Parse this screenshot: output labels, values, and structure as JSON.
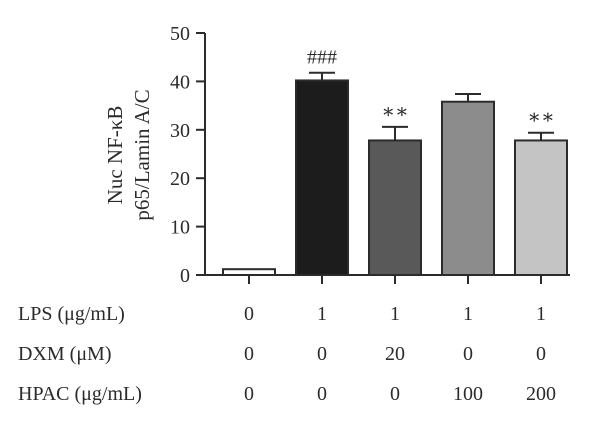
{
  "chart_data": {
    "type": "bar",
    "ylabel_lines": [
      "Nuc NF-κB",
      "p65/Lamin A/C"
    ],
    "ylim": [
      0,
      50
    ],
    "yticks": [
      0,
      10,
      20,
      30,
      40,
      50
    ],
    "values": [
      1.2,
      40.2,
      27.8,
      35.8,
      27.8
    ],
    "errors": [
      0,
      1.6,
      2.8,
      1.6,
      1.6
    ],
    "colors": [
      "#ffffff",
      "#1c1c1c",
      "#595959",
      "#8c8c8c",
      "#c4c4c4"
    ],
    "significance": [
      "",
      "###",
      "∗∗",
      "",
      "∗∗"
    ],
    "treatment_rows": [
      {
        "label": "LPS (μg/mL)",
        "values": [
          "0",
          "1",
          "1",
          "1",
          "1"
        ]
      },
      {
        "label": "DXM (μM)",
        "values": [
          "0",
          "0",
          "20",
          "0",
          "0"
        ]
      },
      {
        "label": "HPAC (μg/mL)",
        "values": [
          "0",
          "0",
          "0",
          "100",
          "200"
        ]
      }
    ]
  }
}
